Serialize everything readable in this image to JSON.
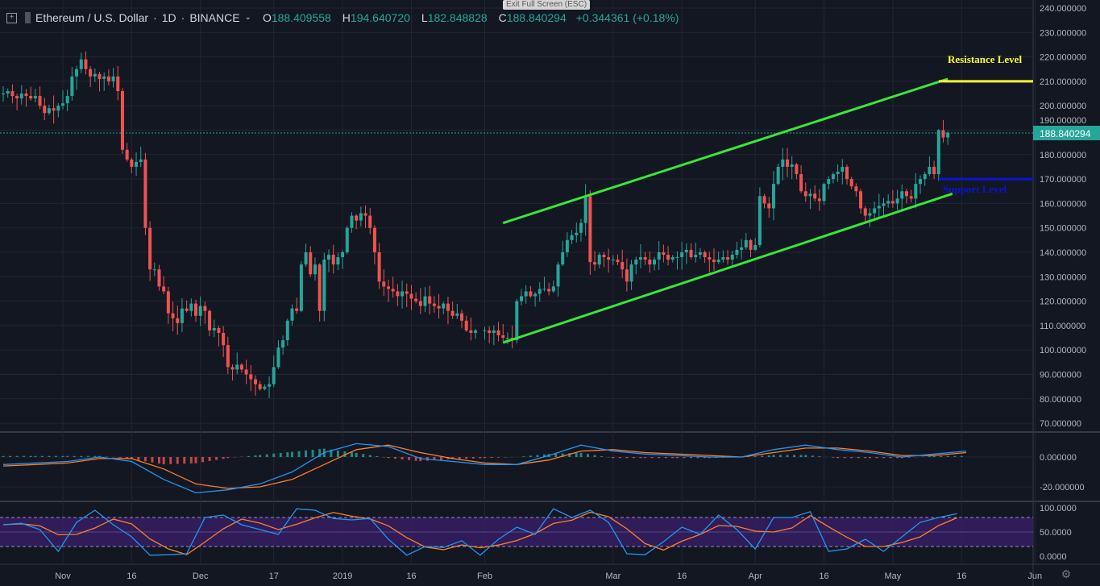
{
  "header": {
    "symbol": "Ethereum / U.S. Dollar",
    "interval": "1D",
    "exchange": "BINANCE",
    "open_label": "O",
    "open": "188.409558",
    "high_label": "H",
    "high": "194.640720",
    "low_label": "L",
    "low": "182.848828",
    "close_label": "C",
    "close": "188.840294",
    "change": "+0.344361 (+0.18%)",
    "tooltip": "Exit Full Screen (ESC)"
  },
  "colors": {
    "background": "#131722",
    "up": "#26a69a",
    "down": "#ef5350",
    "channel": "#39e639",
    "resistance": "#ffff33",
    "support": "#0a14d4",
    "macd": "#2196f3",
    "signal": "#ff7f2a",
    "stoch_band": "#3a1f6b"
  },
  "chart_data": [
    {
      "type": "candlestick",
      "title": "Ethereum / U.S. Dollar",
      "ylim": [
        70,
        240
      ],
      "y_ticks": [
        "240.000000",
        "230.000000",
        "220.000000",
        "210.000000",
        "200.000000",
        "190.000000",
        "180.000000",
        "170.000000",
        "160.000000",
        "150.000000",
        "140.000000",
        "130.000000",
        "120.000000",
        "110.000000",
        "100.000000",
        "90.000000",
        "80.000000",
        "70.000000"
      ],
      "last_price": "188.840294",
      "x_ticks": [
        "Nov",
        "16",
        "Dec",
        "17",
        "2019",
        "16",
        "Feb",
        "Mar",
        "16",
        "Apr",
        "16",
        "May",
        "16",
        "Jun"
      ],
      "x_tick_dates": [
        "2018-11-01",
        "2018-11-16",
        "2018-12-01",
        "2018-12-17",
        "2019-01-01",
        "2019-01-16",
        "2019-02-01",
        "2019-03-01",
        "2019-03-16",
        "2019-04-01",
        "2019-04-16",
        "2019-05-01",
        "2019-05-16",
        "2019-06-01"
      ],
      "daily_closes": [
        {
          "month": "2018-10",
          "start_day": 19,
          "closes": [
            205,
            206,
            204,
            203,
            205,
            204,
            203,
            204,
            200,
            197,
            199,
            198,
            200
          ]
        },
        {
          "month": "2018-11",
          "start_day": 1,
          "closes": [
            201,
            204,
            212,
            215,
            219,
            215,
            212,
            213,
            211,
            212,
            210,
            212,
            206,
            182,
            178,
            175,
            177,
            178,
            150,
            133,
            133,
            126,
            124,
            115,
            113,
            111,
            117,
            116,
            119,
            114
          ]
        },
        {
          "month": "2018-12",
          "start_day": 1,
          "closes": [
            118,
            116,
            108,
            109,
            107,
            102,
            93,
            92,
            94,
            92,
            90,
            88,
            86,
            84,
            85,
            86,
            93,
            101,
            104,
            112,
            117,
            116,
            135,
            140,
            131,
            135,
            116,
            137,
            139,
            135,
            138
          ]
        },
        {
          "month": "2019-01",
          "start_day": 1,
          "closes": [
            140,
            150,
            155,
            153,
            156,
            155,
            150,
            140,
            128,
            126,
            125,
            124,
            122,
            124,
            123,
            121,
            120,
            118,
            122,
            119,
            118,
            117,
            119,
            116,
            114,
            115,
            112,
            108,
            107,
            108
          ]
        },
        {
          "month": "2019-02",
          "start_day": 1,
          "closes": [
            108,
            107,
            108,
            106,
            105,
            105,
            104,
            120,
            122,
            124,
            122,
            123,
            125,
            125,
            124,
            126,
            135,
            140,
            145,
            147,
            148,
            152,
            163,
            136,
            135,
            139,
            138,
            137
          ]
        },
        {
          "month": "2019-03",
          "start_day": 1,
          "closes": [
            137,
            136,
            133,
            128,
            135,
            137,
            138,
            137,
            135,
            137,
            140,
            139,
            137,
            138,
            138,
            140,
            141,
            138,
            139,
            140,
            138,
            137,
            136,
            137,
            138,
            137,
            139,
            141,
            142,
            145,
            141
          ]
        },
        {
          "month": "2019-04",
          "start_day": 1,
          "closes": [
            143,
            163,
            160,
            158,
            168,
            175,
            178,
            175,
            176,
            172,
            165,
            163,
            164,
            162,
            161,
            168,
            170,
            172,
            173,
            175,
            170,
            167,
            165,
            158,
            155,
            156,
            158,
            159,
            160,
            161
          ]
        },
        {
          "month": "2019-05",
          "start_day": 1,
          "closes": [
            160,
            162,
            165,
            163,
            162,
            168,
            170,
            172,
            175,
            172,
            190,
            187,
            189
          ]
        }
      ],
      "annotations": [
        {
          "type": "trendline",
          "name": "channel-upper",
          "from": [
            "2019-02-05",
            152
          ],
          "to": [
            "2019-05-13",
            211
          ]
        },
        {
          "type": "trendline",
          "name": "channel-lower",
          "from": [
            "2019-02-05",
            103
          ],
          "to": [
            "2019-05-14",
            164
          ]
        },
        {
          "type": "hline",
          "label": "Resistance Level",
          "value": 210
        },
        {
          "type": "hline",
          "label": "Support Level",
          "value": 170
        }
      ]
    },
    {
      "type": "line",
      "indicator": "MACD",
      "ylim": [
        -30,
        10
      ],
      "y_ticks": [
        "0.000000",
        "-20.000000"
      ],
      "sample_every_days": 7,
      "series": [
        {
          "key": "macd",
          "values": [
            -5,
            -4,
            -3,
            0,
            -3,
            -15,
            -24,
            -22,
            -18,
            -10,
            3,
            9,
            7,
            -1,
            -3,
            -5,
            -5,
            1,
            8,
            4,
            2,
            1,
            0,
            0,
            5,
            8,
            5,
            3,
            0,
            2,
            4
          ]
        },
        {
          "key": "signal",
          "values": [
            -6,
            -5,
            -4,
            -1,
            -1,
            -8,
            -18,
            -21,
            -20,
            -15,
            -5,
            5,
            8,
            3,
            -1,
            -4,
            -5,
            -2,
            4,
            5,
            3,
            2,
            1,
            0,
            3,
            6,
            6,
            4,
            1,
            1,
            3
          ]
        }
      ]
    },
    {
      "type": "line",
      "indicator": "Stochastic RSI",
      "ylim": [
        -8,
        105
      ],
      "y_ticks": [
        "100.0000",
        "50.0000",
        "0.0000"
      ],
      "bands": [
        20,
        80
      ],
      "sample_every_days": 4,
      "series": [
        {
          "key": "k",
          "values": [
            65,
            68,
            55,
            10,
            70,
            95,
            65,
            40,
            2,
            3,
            5,
            80,
            85,
            65,
            55,
            45,
            98,
            95,
            78,
            75,
            78,
            35,
            2,
            20,
            18,
            32,
            2,
            35,
            60,
            45,
            98,
            80,
            95,
            70,
            5,
            3,
            30,
            60,
            45,
            85,
            55,
            15,
            80,
            80,
            92,
            10,
            15,
            35,
            10,
            40,
            70,
            80,
            88
          ]
        }
      ]
    }
  ]
}
